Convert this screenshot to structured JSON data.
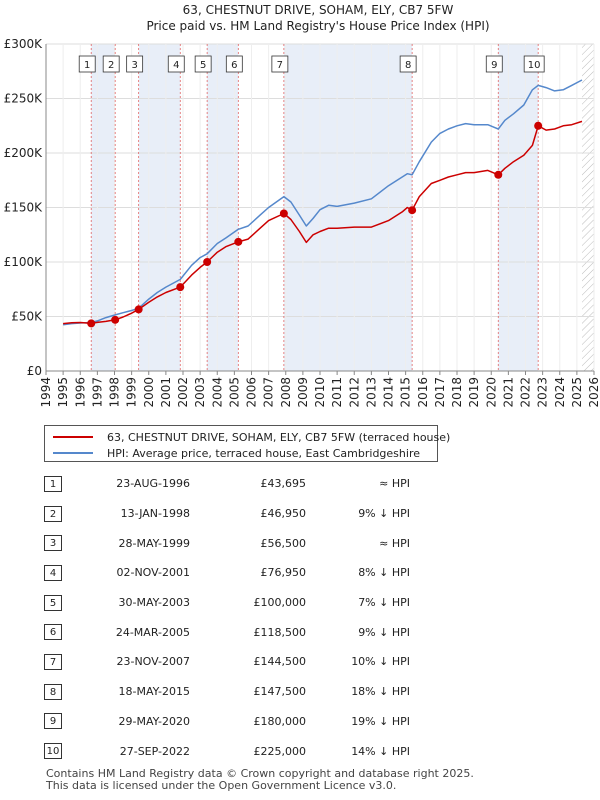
{
  "chart_data": {
    "type": "line",
    "title": "63, CHESTNUT DRIVE, SOHAM, ELY, CB7 5FW",
    "subtitle": "Price paid vs. HM Land Registry's House Price Index (HPI)",
    "ylim": [
      0,
      300000
    ],
    "xlim": [
      1994,
      2026
    ],
    "yticks": [
      {
        "value": 0,
        "label": "£0"
      },
      {
        "value": 50000,
        "label": "£50K"
      },
      {
        "value": 100000,
        "label": "£100K"
      },
      {
        "value": 150000,
        "label": "£150K"
      },
      {
        "value": 200000,
        "label": "£200K"
      },
      {
        "value": 250000,
        "label": "£250K"
      },
      {
        "value": 300000,
        "label": "£300K"
      }
    ],
    "xticks": [
      1994,
      1995,
      1996,
      1997,
      1998,
      1999,
      2000,
      2001,
      2002,
      2003,
      2004,
      2005,
      2006,
      2007,
      2008,
      2009,
      2010,
      2011,
      2012,
      2013,
      2014,
      2015,
      2016,
      2017,
      2018,
      2019,
      2020,
      2021,
      2022,
      2023,
      2024,
      2025,
      2026
    ],
    "colors": {
      "property": "#cc0000",
      "hpi": "#5588cc",
      "band": "#e8eef8",
      "marker_line": "#e06666"
    },
    "series": [
      {
        "name": "63, CHESTNUT DRIVE, SOHAM, ELY, CB7 5FW (terraced house)",
        "points": [
          [
            1995.0,
            43500
          ],
          [
            1995.5,
            44200
          ],
          [
            1996.0,
            44500
          ],
          [
            1996.64,
            43695
          ],
          [
            1997.0,
            44600
          ],
          [
            1997.5,
            45500
          ],
          [
            1998.04,
            46950
          ],
          [
            1998.5,
            49500
          ],
          [
            1999.0,
            53000
          ],
          [
            1999.41,
            56500
          ],
          [
            2000.0,
            63000
          ],
          [
            2000.5,
            68000
          ],
          [
            2001.0,
            72000
          ],
          [
            2001.84,
            76950
          ],
          [
            2002.5,
            88000
          ],
          [
            2003.0,
            95000
          ],
          [
            2003.41,
            100000
          ],
          [
            2004.0,
            109000
          ],
          [
            2004.5,
            114000
          ],
          [
            2005.23,
            118500
          ],
          [
            2005.8,
            121000
          ],
          [
            2006.5,
            131000
          ],
          [
            2007.0,
            138000
          ],
          [
            2007.89,
            144500
          ],
          [
            2008.3,
            139000
          ],
          [
            2008.8,
            128000
          ],
          [
            2009.2,
            118000
          ],
          [
            2009.6,
            125000
          ],
          [
            2010.0,
            128000
          ],
          [
            2010.5,
            131000
          ],
          [
            2011.0,
            131000
          ],
          [
            2012.0,
            132000
          ],
          [
            2013.0,
            132000
          ],
          [
            2014.0,
            138000
          ],
          [
            2014.8,
            146000
          ],
          [
            2015.1,
            150000
          ],
          [
            2015.38,
            147500
          ],
          [
            2015.8,
            160000
          ],
          [
            2016.5,
            172000
          ],
          [
            2017.0,
            175000
          ],
          [
            2017.5,
            178000
          ],
          [
            2018.0,
            180000
          ],
          [
            2018.5,
            182000
          ],
          [
            2019.0,
            182000
          ],
          [
            2019.8,
            184000
          ],
          [
            2020.41,
            180000
          ],
          [
            2020.8,
            186000
          ],
          [
            2021.3,
            192000
          ],
          [
            2021.9,
            198000
          ],
          [
            2022.4,
            207000
          ],
          [
            2022.74,
            225000
          ],
          [
            2023.2,
            221000
          ],
          [
            2023.7,
            222000
          ],
          [
            2024.2,
            225000
          ],
          [
            2024.7,
            226000
          ],
          [
            2025.3,
            229000
          ]
        ]
      },
      {
        "name": "HPI: Average price, terraced house, East Cambridgeshire",
        "points": [
          [
            1995.0,
            42500
          ],
          [
            1995.5,
            43500
          ],
          [
            1996.0,
            44000
          ],
          [
            1996.64,
            44500
          ],
          [
            1997.0,
            46000
          ],
          [
            1997.5,
            49000
          ],
          [
            1998.04,
            51500
          ],
          [
            1998.5,
            53500
          ],
          [
            1999.0,
            55500
          ],
          [
            1999.41,
            57500
          ],
          [
            2000.0,
            66000
          ],
          [
            2000.5,
            72000
          ],
          [
            2001.0,
            77000
          ],
          [
            2001.84,
            84000
          ],
          [
            2002.5,
            97000
          ],
          [
            2003.0,
            104000
          ],
          [
            2003.41,
            107500
          ],
          [
            2004.0,
            117000
          ],
          [
            2004.5,
            122000
          ],
          [
            2005.23,
            130000
          ],
          [
            2005.8,
            133000
          ],
          [
            2006.5,
            143000
          ],
          [
            2007.0,
            150000
          ],
          [
            2007.89,
            160000
          ],
          [
            2008.3,
            155000
          ],
          [
            2008.8,
            143000
          ],
          [
            2009.2,
            133000
          ],
          [
            2009.6,
            140000
          ],
          [
            2010.0,
            148000
          ],
          [
            2010.5,
            152000
          ],
          [
            2011.0,
            151000
          ],
          [
            2012.0,
            154000
          ],
          [
            2013.0,
            158000
          ],
          [
            2014.0,
            170000
          ],
          [
            2014.8,
            178000
          ],
          [
            2015.1,
            181000
          ],
          [
            2015.38,
            180000
          ],
          [
            2015.8,
            192000
          ],
          [
            2016.5,
            210000
          ],
          [
            2017.0,
            218000
          ],
          [
            2017.5,
            222000
          ],
          [
            2018.0,
            225000
          ],
          [
            2018.5,
            227000
          ],
          [
            2019.0,
            226000
          ],
          [
            2019.8,
            226000
          ],
          [
            2020.41,
            222000
          ],
          [
            2020.8,
            230000
          ],
          [
            2021.3,
            236000
          ],
          [
            2021.9,
            244000
          ],
          [
            2022.4,
            258000
          ],
          [
            2022.74,
            262000
          ],
          [
            2023.2,
            260000
          ],
          [
            2023.7,
            257000
          ],
          [
            2024.2,
            258000
          ],
          [
            2024.7,
            262000
          ],
          [
            2025.3,
            267000
          ]
        ]
      }
    ],
    "sales": [
      {
        "n": "1",
        "date": "23-AUG-1996",
        "price": "£43,695",
        "hpi": "≈ HPI",
        "x": 1996.64,
        "value": 43695
      },
      {
        "n": "2",
        "date": "13-JAN-1998",
        "price": "£46,950",
        "hpi": "9% ↓ HPI",
        "x": 1998.04,
        "value": 46950
      },
      {
        "n": "3",
        "date": "28-MAY-1999",
        "price": "£56,500",
        "hpi": "≈ HPI",
        "x": 1999.41,
        "value": 56500
      },
      {
        "n": "4",
        "date": "02-NOV-2001",
        "price": "£76,950",
        "hpi": "8% ↓ HPI",
        "x": 2001.84,
        "value": 76950
      },
      {
        "n": "5",
        "date": "30-MAY-2003",
        "price": "£100,000",
        "hpi": "7% ↓ HPI",
        "x": 2003.41,
        "value": 100000
      },
      {
        "n": "6",
        "date": "24-MAR-2005",
        "price": "£118,500",
        "hpi": "9% ↓ HPI",
        "x": 2005.23,
        "value": 118500
      },
      {
        "n": "7",
        "date": "23-NOV-2007",
        "price": "£144,500",
        "hpi": "10% ↓ HPI",
        "x": 2007.89,
        "value": 144500
      },
      {
        "n": "8",
        "date": "18-MAY-2015",
        "price": "£147,500",
        "hpi": "18% ↓ HPI",
        "x": 2015.38,
        "value": 147500
      },
      {
        "n": "9",
        "date": "29-MAY-2020",
        "price": "£180,000",
        "hpi": "19% ↓ HPI",
        "x": 2020.41,
        "value": 180000
      },
      {
        "n": "10",
        "date": "27-SEP-2022",
        "price": "£225,000",
        "hpi": "14% ↓ HPI",
        "x": 2022.74,
        "value": 225000
      }
    ],
    "shaded_spans": [
      [
        1996.64,
        1998.04
      ],
      [
        1999.41,
        2001.84
      ],
      [
        2003.41,
        2005.23
      ],
      [
        2007.89,
        2015.38
      ],
      [
        2020.41,
        2022.74
      ]
    ],
    "hatched_after": 2025.3
  },
  "legend": {
    "property_label": "63, CHESTNUT DRIVE, SOHAM, ELY, CB7 5FW (terraced house)",
    "hpi_label": "HPI: Average price, terraced house, East Cambridgeshire"
  },
  "footer": {
    "line1": "Contains HM Land Registry data © Crown copyright and database right 2025.",
    "line2": "This data is licensed under the Open Government Licence v3.0."
  }
}
